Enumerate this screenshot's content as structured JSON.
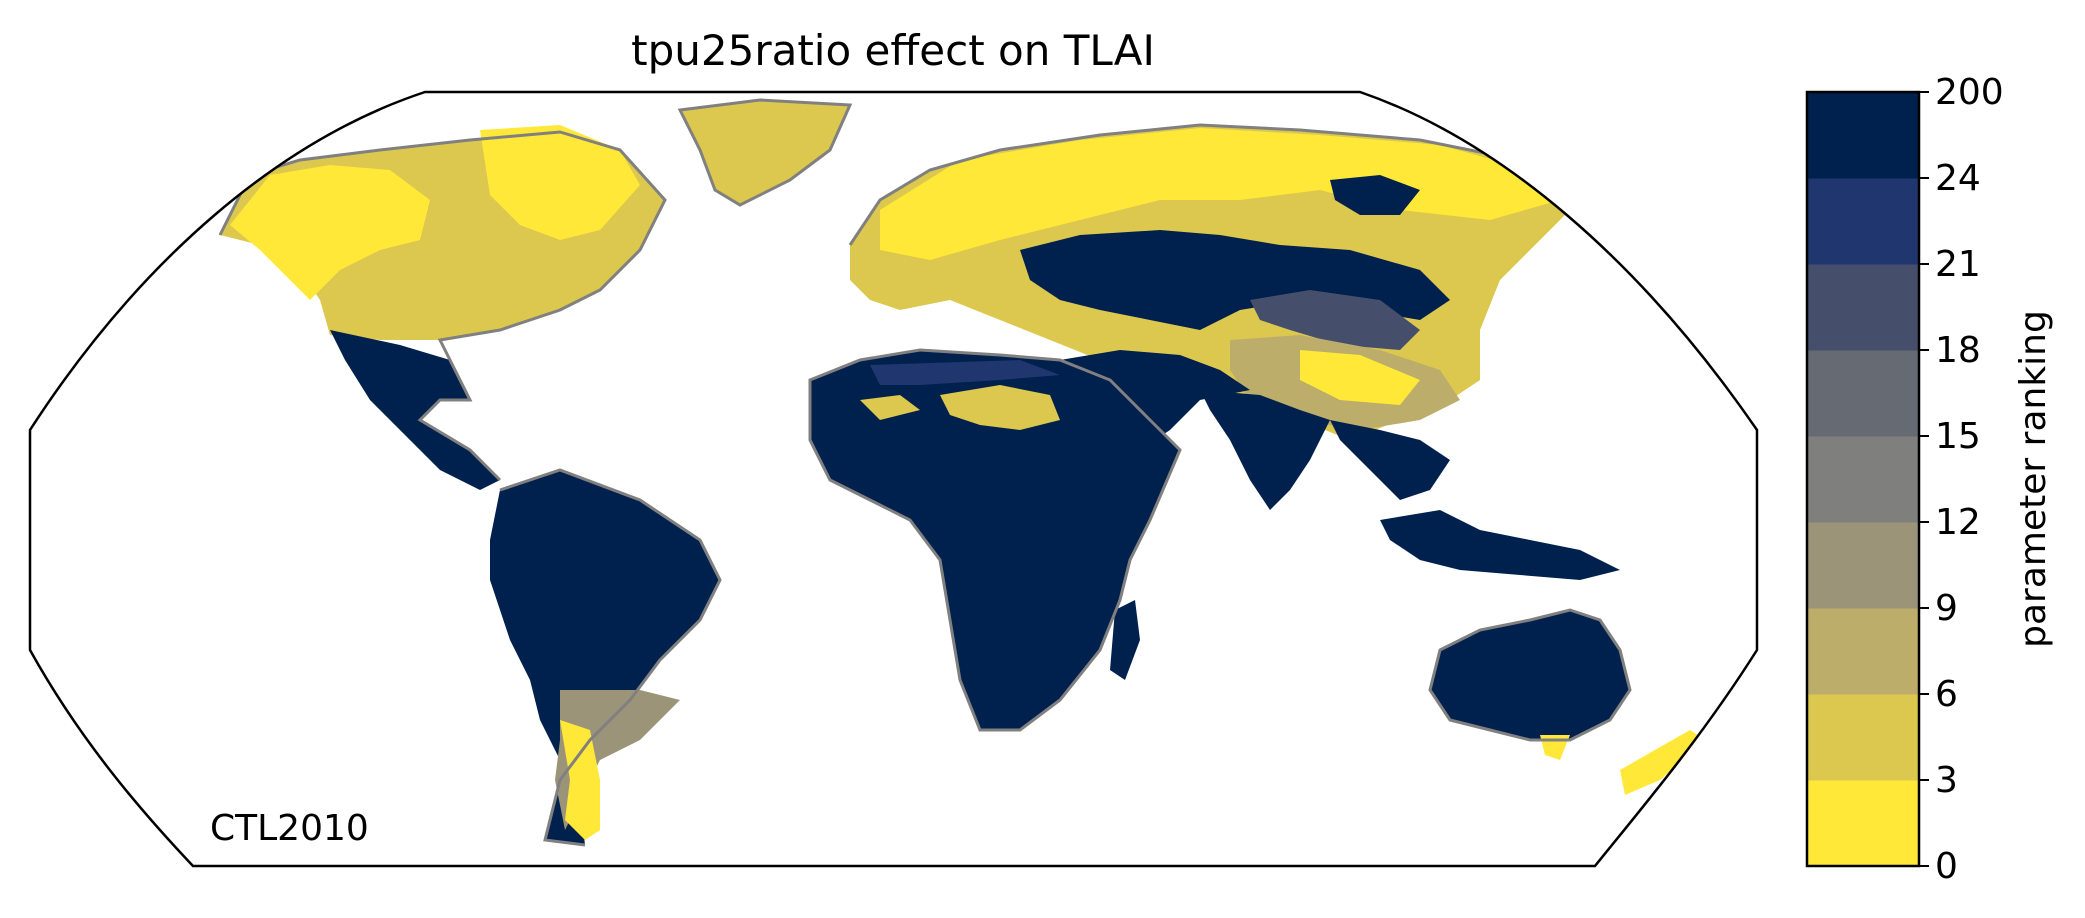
{
  "title": "tpu25ratio effect on TLAI",
  "annotation": "CTL2010",
  "colorbar": {
    "label": "parameter ranking",
    "ticks": [
      "0",
      "3",
      "6",
      "9",
      "12",
      "15",
      "18",
      "21",
      "24",
      "200"
    ],
    "colors": [
      "#ffe838",
      "#dcc84e",
      "#bcae6a",
      "#9b9478",
      "#7f7f7d",
      "#656a73",
      "#454f6b",
      "#1f366e",
      "#00214e"
    ]
  },
  "map": {
    "projection": "Robinson",
    "ocean_color": "#ffffff",
    "coastline_color": "#808080"
  }
}
